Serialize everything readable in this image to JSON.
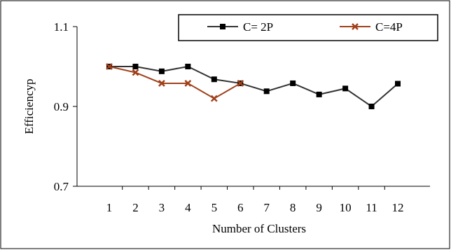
{
  "chart_data": {
    "type": "line",
    "title": "",
    "xlabel": "Number of Clusters",
    "ylabel": "Efficiencyp",
    "x": [
      1,
      2,
      3,
      4,
      5,
      6,
      7,
      8,
      9,
      10,
      11,
      12
    ],
    "x_tick_labels": [
      "1",
      "2",
      "3",
      "4",
      "5",
      "6",
      "7",
      "8",
      "9",
      "10",
      "11",
      "12"
    ],
    "y_ticks": [
      0.7,
      0.9,
      1.1
    ],
    "y_tick_labels": [
      "0.7",
      "0.9",
      "1.1"
    ],
    "ylim": [
      0.7,
      1.1
    ],
    "xlim": [
      1,
      12
    ],
    "grid": false,
    "legend_position": "top-right",
    "series": [
      {
        "name": "C= 2P",
        "color": "#333333",
        "marker": "square",
        "x": [
          1,
          2,
          3,
          4,
          5,
          6,
          7,
          8,
          9,
          10,
          11,
          12
        ],
        "values": [
          1.0,
          1.0,
          0.988,
          1.0,
          0.968,
          0.958,
          0.938,
          0.958,
          0.93,
          0.945,
          0.9,
          0.957
        ]
      },
      {
        "name": "C=4P",
        "color": "#A0401A",
        "marker": "x",
        "x": [
          1,
          2,
          3,
          4,
          5,
          6
        ],
        "values": [
          1.0,
          0.985,
          0.958,
          0.958,
          0.92,
          0.958
        ]
      }
    ]
  }
}
